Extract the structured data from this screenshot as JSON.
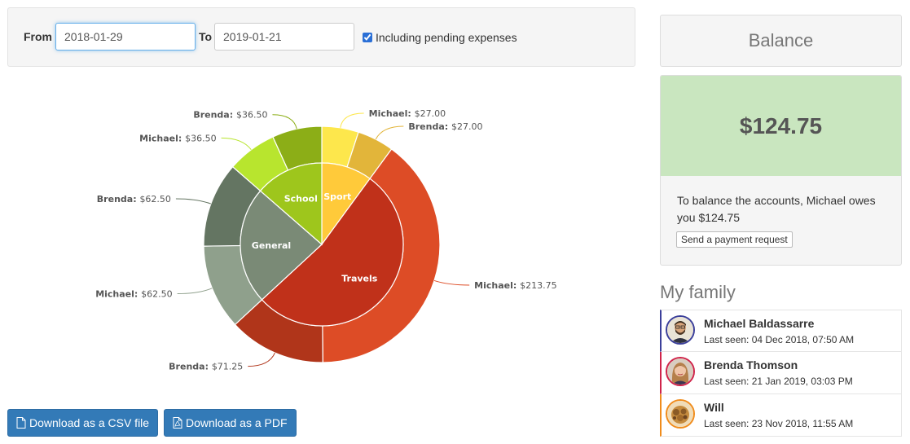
{
  "filters": {
    "from_label": "From",
    "from_value": "2018-01-29",
    "to_label": "To",
    "to_value": "2019-01-21",
    "pending_label": "Including pending expenses",
    "pending_checked": true
  },
  "chart_data": {
    "type": "pie",
    "inner": [
      {
        "name": "Sport",
        "value": 54.0,
        "color": "#ffca3a"
      },
      {
        "name": "Travels",
        "value": 285.0,
        "color": "#c0311a"
      },
      {
        "name": "General",
        "value": 125.0,
        "color": "#7a8a76"
      },
      {
        "name": "School",
        "value": 73.0,
        "color": "#9ec61c"
      }
    ],
    "outer": [
      {
        "category": "Sport",
        "person": "Michael",
        "amount": "$27.00",
        "value": 27.0,
        "color": "#fde74c"
      },
      {
        "category": "Sport",
        "person": "Brenda",
        "amount": "$27.00",
        "value": 27.0,
        "color": "#e2b53a"
      },
      {
        "category": "Travels",
        "person": "Michael",
        "amount": "$213.75",
        "value": 213.75,
        "color": "#dd4c26"
      },
      {
        "category": "Travels",
        "person": "Brenda",
        "amount": "$71.25",
        "value": 71.25,
        "color": "#b0351a"
      },
      {
        "category": "General",
        "person": "Michael",
        "amount": "$62.50",
        "value": 62.5,
        "color": "#8fa08c"
      },
      {
        "category": "General",
        "person": "Brenda",
        "amount": "$62.50",
        "value": 62.5,
        "color": "#647562"
      },
      {
        "category": "School",
        "person": "Michael",
        "amount": "$36.50",
        "value": 36.5,
        "color": "#b8e52e"
      },
      {
        "category": "School",
        "person": "Brenda",
        "amount": "$36.50",
        "value": 36.5,
        "color": "#8cae17"
      }
    ]
  },
  "downloads": {
    "csv_label": "Download as a CSV file",
    "pdf_label": "Download as a PDF"
  },
  "balance": {
    "title": "Balance",
    "amount": "$124.75",
    "description": "To balance the accounts, Michael owes you $124.75",
    "request_label": "Send a payment request",
    "amount_bg": "#c9e6bf"
  },
  "family": {
    "title": "My family",
    "members": [
      {
        "name": "Michael Baldassarre",
        "last_seen": "Last seen: 04 Dec 2018, 07:50 AM",
        "color": "#3b3f9a"
      },
      {
        "name": "Brenda Thomson",
        "last_seen": "Last seen: 21 Jan 2019, 03:03 PM",
        "color": "#d0244a"
      },
      {
        "name": "Will",
        "last_seen": "Last seen: 23 Nov 2018, 11:55 AM",
        "color": "#f08c1c"
      }
    ]
  }
}
